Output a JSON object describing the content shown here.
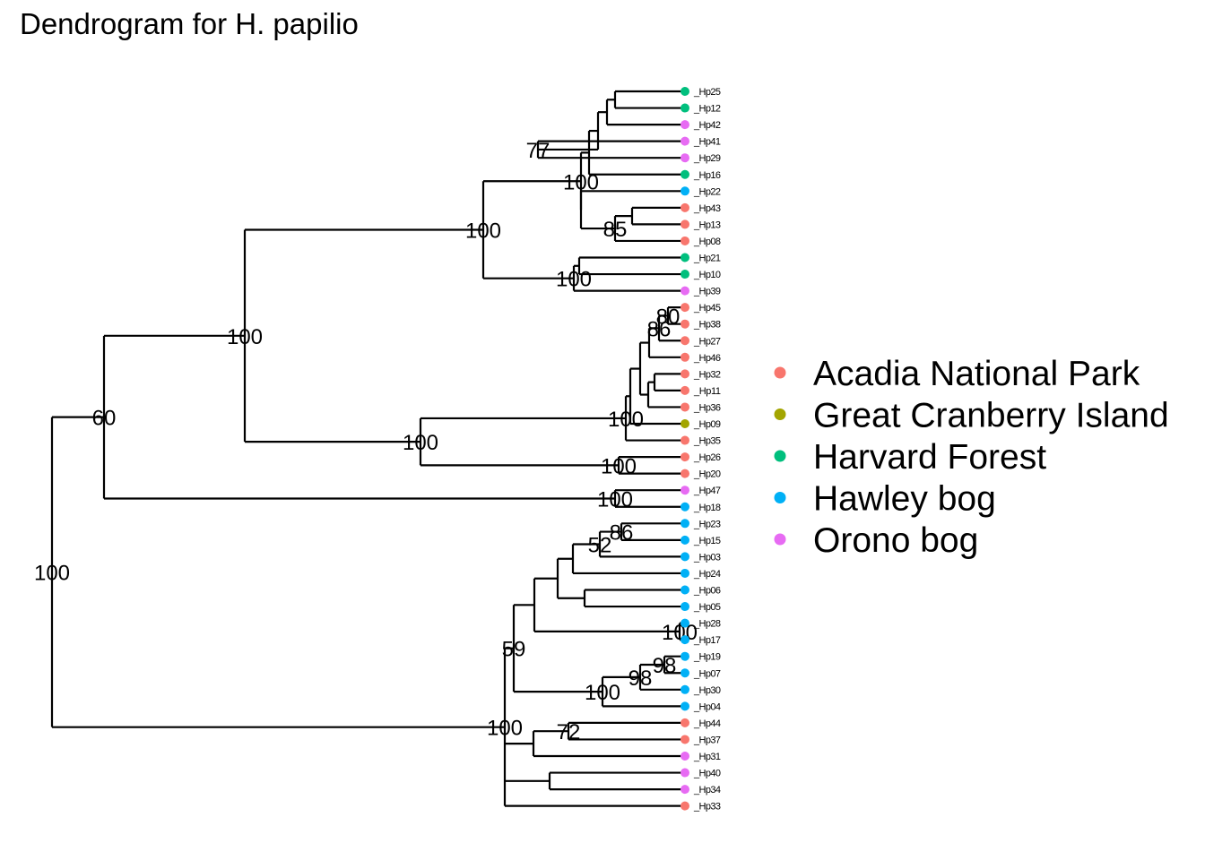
{
  "title": "Dendrogram for H. papilio",
  "colors": {
    "acadia": "#F8766D",
    "cranberry": "#A3A500",
    "harvard": "#00BF7D",
    "hawley": "#00B0F6",
    "orono": "#E76BF3"
  },
  "legend": [
    {
      "label": "Acadia National Park",
      "color": "#F8766D"
    },
    {
      "label": "Great Cranberry Island",
      "color": "#A3A500"
    },
    {
      "label": "Harvard Forest",
      "color": "#00BF7D"
    },
    {
      "label": "Hawley bog",
      "color": "#00B0F6"
    },
    {
      "label": "Orono bog",
      "color": "#E76BF3"
    }
  ],
  "tips": [
    {
      "label": "_Hp25",
      "group": "harvard"
    },
    {
      "label": "_Hp12",
      "group": "harvard"
    },
    {
      "label": "_Hp42",
      "group": "orono"
    },
    {
      "label": "_Hp41",
      "group": "orono"
    },
    {
      "label": "_Hp29",
      "group": "orono"
    },
    {
      "label": "_Hp16",
      "group": "harvard"
    },
    {
      "label": "_Hp22",
      "group": "hawley"
    },
    {
      "label": "_Hp43",
      "group": "acadia"
    },
    {
      "label": "_Hp13",
      "group": "acadia"
    },
    {
      "label": "_Hp08",
      "group": "acadia"
    },
    {
      "label": "_Hp21",
      "group": "harvard"
    },
    {
      "label": "_Hp10",
      "group": "harvard"
    },
    {
      "label": "_Hp39",
      "group": "orono"
    },
    {
      "label": "_Hp45",
      "group": "acadia"
    },
    {
      "label": "_Hp38",
      "group": "acadia"
    },
    {
      "label": "_Hp27",
      "group": "acadia"
    },
    {
      "label": "_Hp46",
      "group": "acadia"
    },
    {
      "label": "_Hp32",
      "group": "acadia"
    },
    {
      "label": "_Hp11",
      "group": "acadia"
    },
    {
      "label": "_Hp36",
      "group": "acadia"
    },
    {
      "label": "_Hp09",
      "group": "cranberry"
    },
    {
      "label": "_Hp35",
      "group": "acadia"
    },
    {
      "label": "_Hp26",
      "group": "acadia"
    },
    {
      "label": "_Hp20",
      "group": "acadia"
    },
    {
      "label": "_Hp47",
      "group": "orono"
    },
    {
      "label": "_Hp18",
      "group": "hawley"
    },
    {
      "label": "_Hp23",
      "group": "hawley"
    },
    {
      "label": "_Hp15",
      "group": "hawley"
    },
    {
      "label": "_Hp03",
      "group": "hawley"
    },
    {
      "label": "_Hp24",
      "group": "hawley"
    },
    {
      "label": "_Hp06",
      "group": "hawley"
    },
    {
      "label": "_Hp05",
      "group": "hawley"
    },
    {
      "label": "_Hp28",
      "group": "hawley"
    },
    {
      "label": "_Hp17",
      "group": "hawley"
    },
    {
      "label": "_Hp19",
      "group": "hawley"
    },
    {
      "label": "_Hp07",
      "group": "hawley"
    },
    {
      "label": "_Hp30",
      "group": "hawley"
    },
    {
      "label": "_Hp04",
      "group": "hawley"
    },
    {
      "label": "_Hp44",
      "group": "acadia"
    },
    {
      "label": "_Hp37",
      "group": "acadia"
    },
    {
      "label": "_Hp31",
      "group": "orono"
    },
    {
      "label": "_Hp40",
      "group": "orono"
    },
    {
      "label": "_Hp34",
      "group": "orono"
    },
    {
      "label": "_Hp33",
      "group": "acadia"
    }
  ],
  "tree": {
    "support": "100",
    "children": [
      {
        "support": "60",
        "children": [
          {
            "support": "100",
            "children": [
              {
                "support": "100",
                "children": [
                  {
                    "support": "100",
                    "children": [
                      {
                        "children": [
                          {
                            "children": [
                              {
                                "children": [
                                  {
                                    "children": [
                                      {
                                        "tip": 0
                                      },
                                      {
                                        "tip": 1
                                      }
                                    ]
                                  },
                                  {
                                    "tip": 2
                                  }
                                ]
                              },
                              {
                                "support": "77",
                                "children": [
                                  {
                                    "tip": 3
                                  },
                                  {
                                    "tip": 4
                                  }
                                ]
                              }
                            ]
                          },
                          {
                            "tip": 5
                          }
                        ]
                      },
                      {
                        "children": [
                          {
                            "tip": 6
                          },
                          {
                            "support": "85",
                            "children": [
                              {
                                "children": [
                                  {
                                    "tip": 7
                                  },
                                  {
                                    "tip": 8
                                  }
                                ]
                              },
                              {
                                "tip": 9
                              }
                            ]
                          }
                        ]
                      }
                    ]
                  },
                  {
                    "support": "100",
                    "children": [
                      {
                        "children": [
                          {
                            "tip": 10
                          },
                          {
                            "tip": 11
                          }
                        ]
                      },
                      {
                        "tip": 12
                      }
                    ]
                  }
                ]
              },
              {
                "support": "100",
                "children": [
                  {
                    "support": "100",
                    "children": [
                      {
                        "children": [
                          {
                            "children": [
                              {
                                "children": [
                                  {
                                    "support": "86",
                                    "children": [
                                      {
                                        "support": "80",
                                        "children": [
                                          {
                                            "tip": 13
                                          },
                                          {
                                            "tip": 14
                                          }
                                        ]
                                      },
                                      {
                                        "tip": 15
                                      }
                                    ]
                                  },
                                  {
                                    "tip": 16
                                  }
                                ]
                              },
                              {
                                "children": [
                                  {
                                    "children": [
                                      {
                                        "tip": 17
                                      },
                                      {
                                        "tip": 18
                                      }
                                    ]
                                  },
                                  {
                                    "tip": 19
                                  }
                                ]
                              }
                            ]
                          },
                          {
                            "tip": 20
                          }
                        ]
                      },
                      {
                        "tip": 21
                      }
                    ]
                  },
                  {
                    "support": "100",
                    "children": [
                      {
                        "tip": 22
                      },
                      {
                        "tip": 23
                      }
                    ]
                  }
                ]
              }
            ]
          },
          {
            "support": "100",
            "children": [
              {
                "tip": 24
              },
              {
                "tip": 25
              }
            ]
          }
        ]
      },
      {
        "support": "100",
        "children": [
          {
            "support": "59",
            "children": [
              {
                "children": [
                  {
                    "children": [
                      {
                        "children": [
                          {
                            "support": "52",
                            "children": [
                              {
                                "support": "86",
                                "children": [
                                  {
                                    "tip": 26
                                  },
                                  {
                                    "tip": 27
                                  }
                                ]
                              },
                              {
                                "tip": 28
                              }
                            ]
                          },
                          {
                            "tip": 29
                          }
                        ]
                      },
                      {
                        "children": [
                          {
                            "tip": 30
                          },
                          {
                            "tip": 31
                          }
                        ]
                      }
                    ]
                  },
                  {
                    "support": "100",
                    "children": [
                      {
                        "tip": 32
                      },
                      {
                        "tip": 33
                      }
                    ]
                  }
                ]
              },
              {
                "support": "100",
                "children": [
                  {
                    "support": "98",
                    "children": [
                      {
                        "support": "98",
                        "children": [
                          {
                            "tip": 34
                          },
                          {
                            "tip": 35
                          }
                        ]
                      },
                      {
                        "tip": 36
                      }
                    ]
                  },
                  {
                    "tip": 37
                  }
                ]
              }
            ]
          },
          {
            "children": [
              {
                "support": "72",
                "children": [
                  {
                    "tip": 38
                  },
                  {
                    "tip": 39
                  }
                ]
              },
              {
                "tip": 40
              }
            ]
          },
          {
            "children": [
              {
                "tip": 41
              },
              {
                "tip": 42
              }
            ]
          },
          {
            "tip": 43
          }
        ]
      }
    ]
  }
}
